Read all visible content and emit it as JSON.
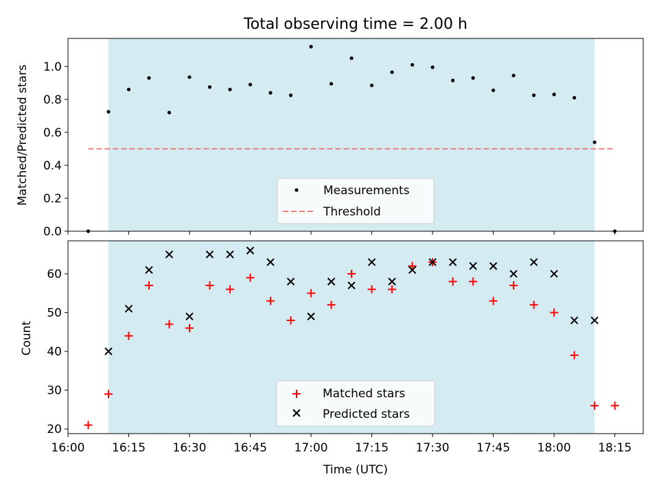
{
  "title": "Total observing time = 2.00 h",
  "chart_data": [
    {
      "type": "scatter",
      "ylabel": "Matched/Predicted stars",
      "ylim": [
        0,
        1.17
      ],
      "xlim": [
        "16:00",
        "18:22"
      ],
      "yticks": [
        "0.0",
        "0.2",
        "0.4",
        "0.6",
        "0.8",
        "1.0"
      ],
      "grid": false,
      "shaded_interval": [
        "16:10",
        "18:10"
      ],
      "shade_color": "#d4ebf1",
      "threshold": {
        "name": "Threshold",
        "value": 0.5,
        "x_range": [
          "16:05",
          "18:15"
        ],
        "color": "#f08080"
      },
      "series": [
        {
          "name": "Measurements",
          "color": "#000000",
          "x": [
            "16:05",
            "16:10",
            "16:15",
            "16:20",
            "16:25",
            "16:30",
            "16:35",
            "16:40",
            "16:45",
            "16:50",
            "16:55",
            "17:00",
            "17:05",
            "17:10",
            "17:15",
            "17:20",
            "17:25",
            "17:30",
            "17:35",
            "17:40",
            "17:45",
            "17:50",
            "17:55",
            "18:00",
            "18:05",
            "18:10",
            "18:15"
          ],
          "y": [
            0.0,
            0.725,
            0.86,
            0.93,
            0.72,
            0.935,
            0.875,
            0.86,
            0.89,
            0.84,
            0.825,
            1.12,
            0.895,
            1.05,
            0.885,
            0.965,
            1.01,
            0.995,
            0.915,
            0.93,
            0.855,
            0.945,
            0.825,
            0.83,
            0.81,
            0.54,
            0.0
          ]
        }
      ],
      "legend": {
        "position": "lower-center"
      }
    },
    {
      "type": "scatter",
      "ylabel": "Count",
      "xlabel": "Time (UTC)",
      "ylim": [
        18.8,
        68.5
      ],
      "xlim": [
        "16:00",
        "18:22"
      ],
      "xticks": [
        "16:00",
        "16:15",
        "16:30",
        "16:45",
        "17:00",
        "17:15",
        "17:30",
        "17:45",
        "18:00",
        "18:15"
      ],
      "yticks": [
        "20",
        "30",
        "40",
        "50",
        "60"
      ],
      "grid": false,
      "shaded_interval": [
        "16:10",
        "18:10"
      ],
      "series": [
        {
          "name": "Matched stars",
          "marker": "plus",
          "color": "#ff0000",
          "x": [
            "16:05",
            "16:10",
            "16:15",
            "16:20",
            "16:25",
            "16:30",
            "16:35",
            "16:40",
            "16:45",
            "16:50",
            "16:55",
            "17:00",
            "17:05",
            "17:10",
            "17:15",
            "17:20",
            "17:25",
            "17:30",
            "17:35",
            "17:40",
            "17:45",
            "17:50",
            "17:55",
            "18:00",
            "18:05",
            "18:10",
            "18:15"
          ],
          "y": [
            21,
            29,
            44,
            57,
            47,
            46,
            57,
            56,
            59,
            53,
            48,
            55,
            52,
            60,
            56,
            56,
            62,
            63,
            58,
            58,
            53,
            57,
            52,
            50,
            39,
            26,
            26
          ]
        },
        {
          "name": "Predicted stars",
          "marker": "x",
          "color": "#000000",
          "x": [
            "16:10",
            "16:15",
            "16:20",
            "16:25",
            "16:30",
            "16:35",
            "16:40",
            "16:45",
            "16:50",
            "16:55",
            "17:00",
            "17:05",
            "17:10",
            "17:15",
            "17:20",
            "17:25",
            "17:30",
            "17:35",
            "17:40",
            "17:45",
            "17:50",
            "17:55",
            "18:00",
            "18:05",
            "18:10"
          ],
          "y": [
            40,
            51,
            61,
            65,
            49,
            65,
            65,
            66,
            63,
            58,
            49,
            58,
            57,
            63,
            58,
            61,
            63,
            63,
            62,
            62,
            60,
            63,
            60,
            48,
            48
          ]
        }
      ],
      "legend": {
        "position": "lower-center"
      }
    }
  ]
}
